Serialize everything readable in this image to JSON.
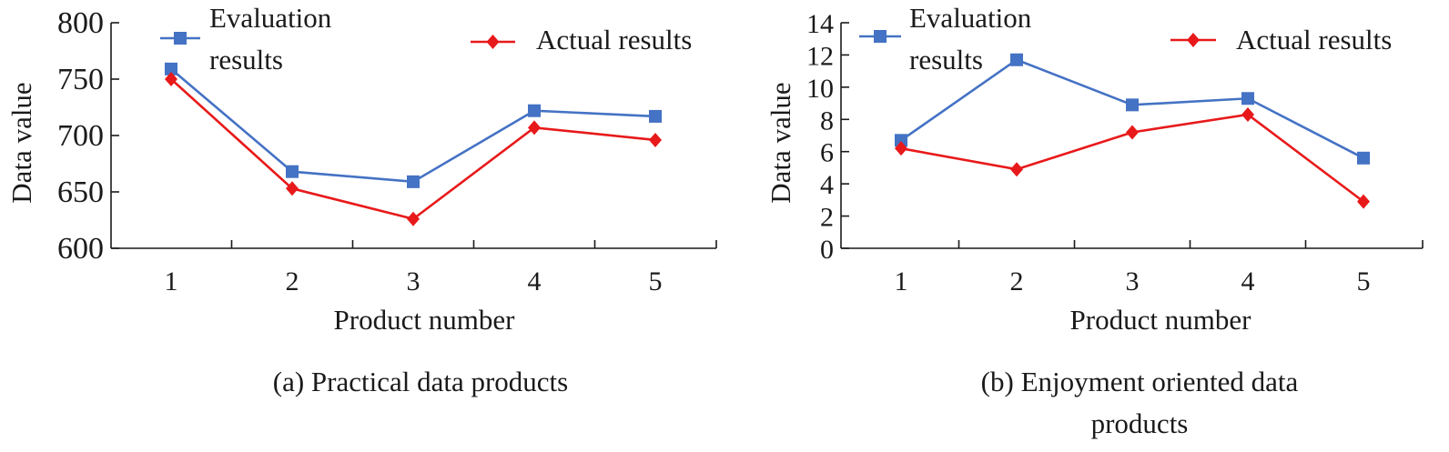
{
  "chart_data": [
    {
      "type": "line",
      "caption": "(a) Practical data products",
      "xlabel": "Product number",
      "ylabel": "Data value",
      "categories": [
        "1",
        "2",
        "3",
        "4",
        "5"
      ],
      "ylim": [
        600,
        800
      ],
      "yticks": [
        "600",
        "650",
        "700",
        "750",
        "800"
      ],
      "legend_position": "top",
      "series": [
        {
          "name": "Evaluation results",
          "color": "#4472c4",
          "marker": "square",
          "values": [
            759,
            668,
            659,
            722,
            717
          ]
        },
        {
          "name": "Actual results",
          "color": "#e8191a",
          "marker": "diamond",
          "values": [
            750,
            653,
            626,
            707,
            696
          ]
        }
      ]
    },
    {
      "type": "line",
      "caption": "(b) Enjoyment oriented data products",
      "xlabel": "Product number",
      "ylabel": "Data value",
      "categories": [
        "1",
        "2",
        "3",
        "4",
        "5"
      ],
      "ylim": [
        0,
        14
      ],
      "yticks": [
        "0",
        "2",
        "4",
        "6",
        "8",
        "10",
        "12",
        "14"
      ],
      "legend_position": "top",
      "series": [
        {
          "name": "Evaluation results",
          "color": "#4472c4",
          "marker": "square",
          "values": [
            6.7,
            11.7,
            8.9,
            9.3,
            5.6
          ]
        },
        {
          "name": "Actual results",
          "color": "#e8191a",
          "marker": "diamond",
          "values": [
            6.2,
            4.9,
            7.2,
            8.3,
            2.9
          ]
        }
      ]
    }
  ]
}
